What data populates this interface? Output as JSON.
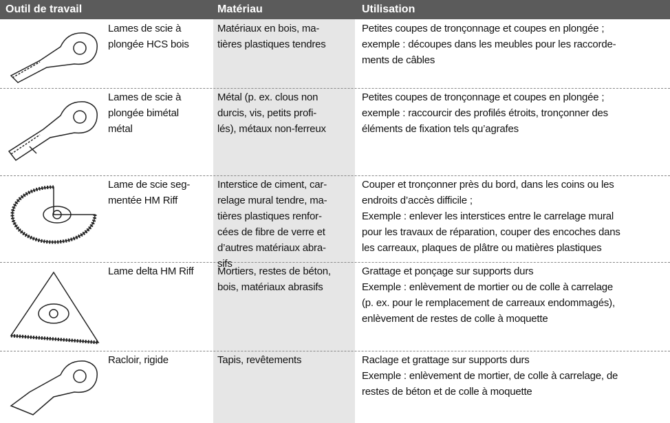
{
  "table": {
    "header": [
      "Outil de travail",
      "Matériau",
      "Utilisation"
    ],
    "rows": [
      [
        [
          "Lames de scie à",
          "plongée HCS bois"
        ],
        [
          "Matériaux en bois, ma-",
          "tières plastiques tendres"
        ],
        [
          "Petites coupes de tronçonnage et coupes en plongée ;",
          "exemple : découpes dans les meubles pour les raccorde-",
          "ments de câbles"
        ]
      ],
      [
        [
          "Lames de scie à",
          "plongée bimétal",
          "métal"
        ],
        [
          "Métal (p. ex. clous non",
          "durcis, vis, petits profi-",
          "lés), métaux non-ferreux"
        ],
        [
          "Petites coupes de tronçonnage et coupes en plongée ;",
          "exemple : raccourcir des profilés étroits, tronçonner des",
          "éléments de fixation tels qu’agrafes"
        ]
      ],
      [
        [
          "Lame de scie seg-",
          "mentée HM Riff"
        ],
        [
          "Interstice de ciment, car-",
          "relage mural tendre, ma-",
          "tières plastiques renfor-",
          "cées de fibre de verre et",
          "d’autres matériaux abra-",
          "sifs"
        ],
        [
          "Couper et tronçonner près du bord, dans les coins ou les",
          "endroits d’accès difficile ;",
          "Exemple : enlever les interstices entre le carrelage mural",
          "pour les travaux de réparation, couper des encoches dans",
          "les carreaux, plaques de plâtre ou matières plastiques"
        ]
      ],
      [
        [
          "Lame delta HM Riff"
        ],
        [
          "Mortiers, restes de béton,",
          "bois, matériaux abrasifs"
        ],
        [
          "Grattage et ponçage sur supports durs",
          "Exemple : enlèvement de mortier ou de colle à carrelage",
          "(p. ex. pour le remplacement de carreaux endommagés),",
          "enlèvement de restes de colle à moquette"
        ]
      ],
      [
        [
          "Racloir, rigide"
        ],
        [
          "Tapis, revêtements"
        ],
        [
          "Raclage et grattage sur supports durs",
          "Exemple : enlèvement de mortier, de colle à carrelage, de",
          "restes de béton et de colle à moquette"
        ]
      ]
    ]
  }
}
